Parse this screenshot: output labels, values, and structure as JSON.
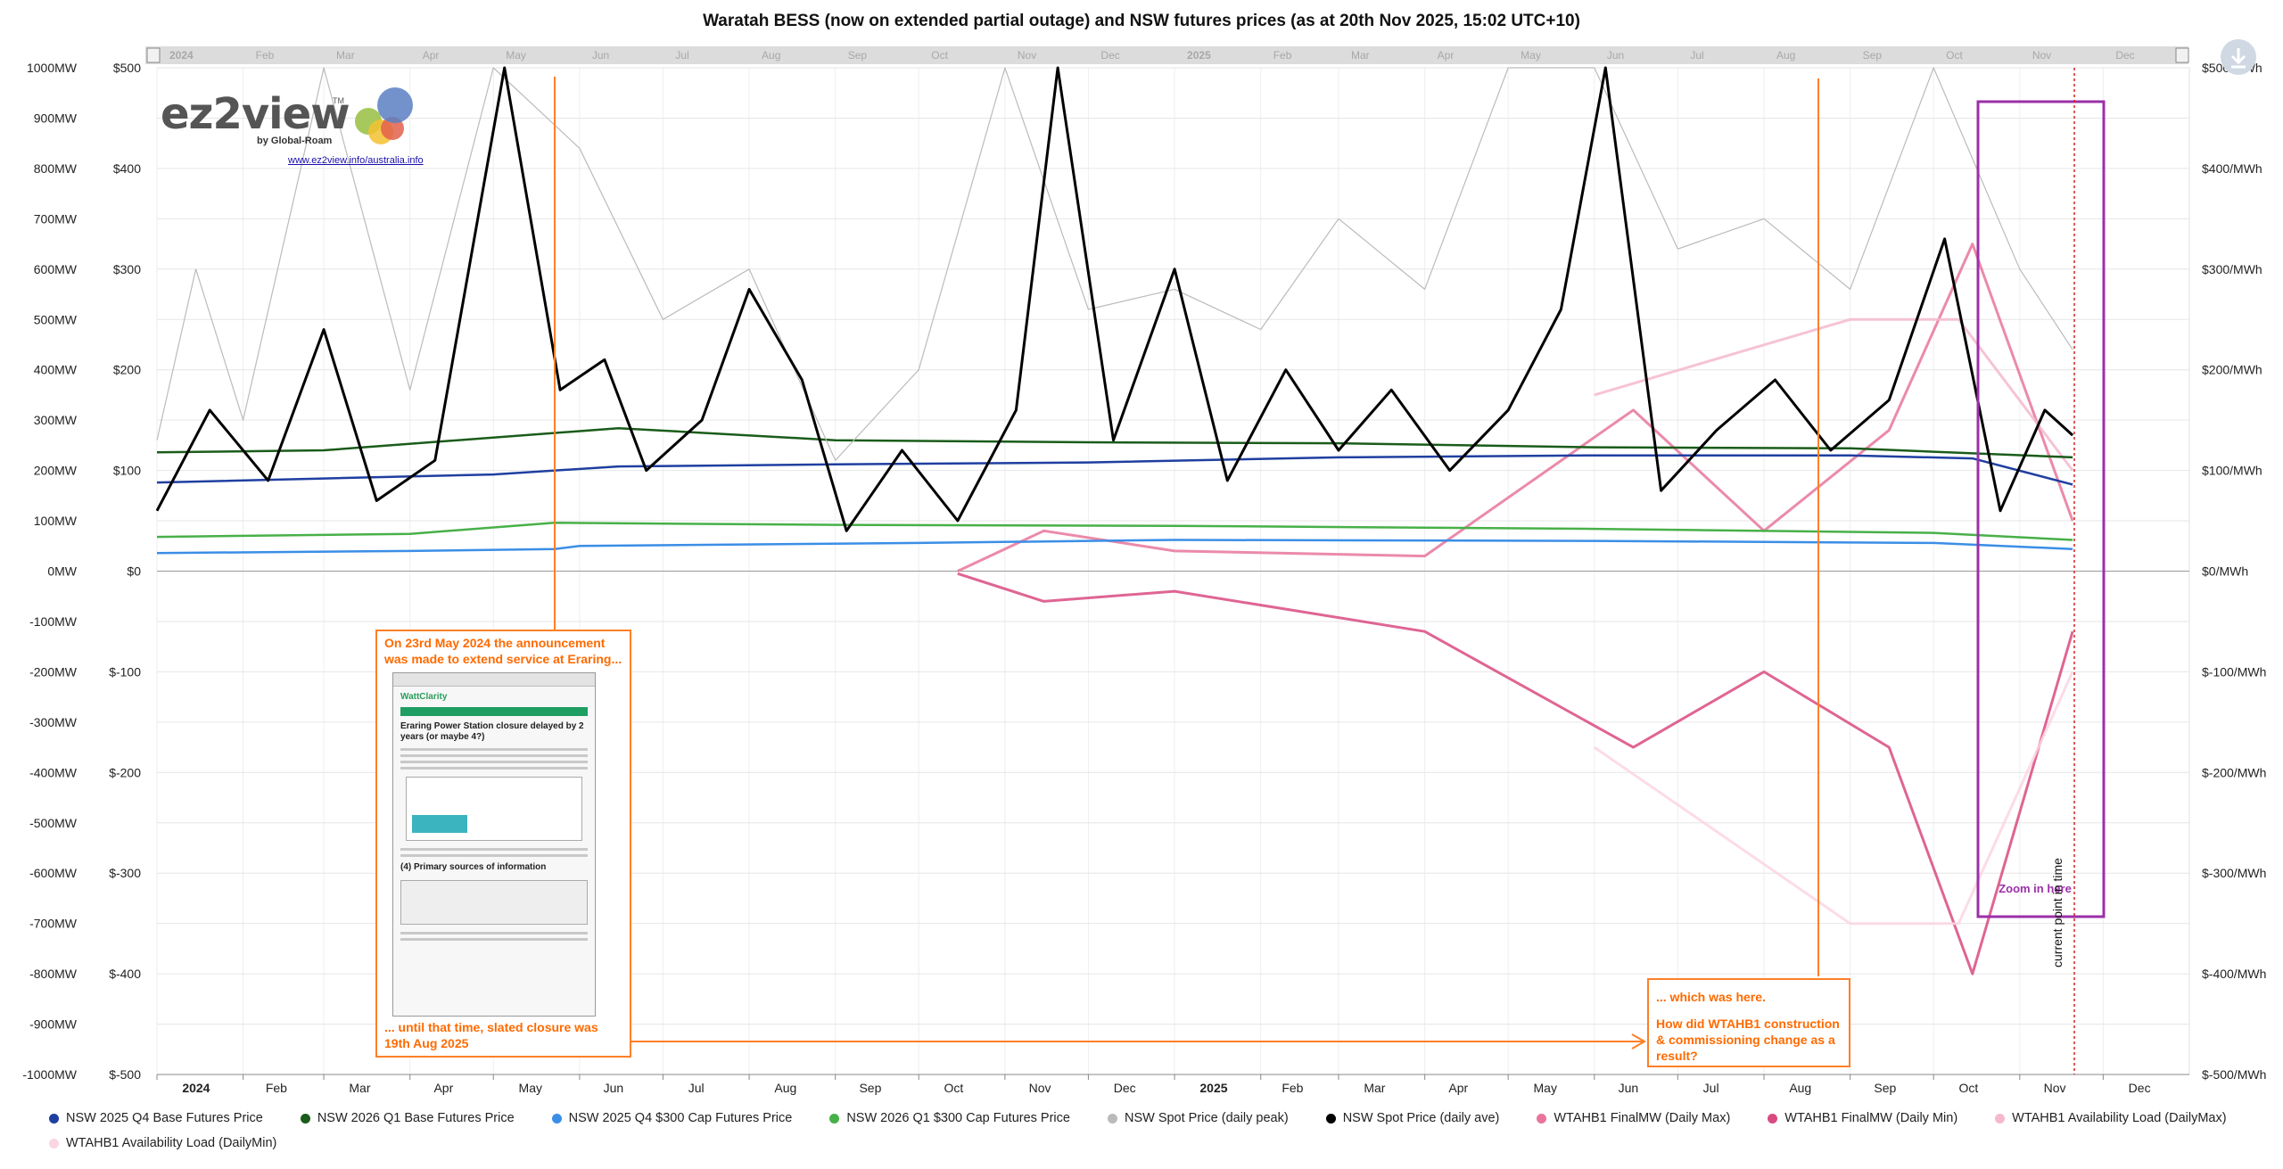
{
  "chart_data": {
    "type": "line",
    "title": "Waratah BESS (now on extended partial outage) and NSW futures prices (as at 20th Nov 2025, 15:02 UTC+10)",
    "x_range": [
      "2024-01-01",
      "2026-01-01"
    ],
    "x_tick_labels": [
      "2024",
      "Feb",
      "Mar",
      "Apr",
      "May",
      "Jun",
      "Jul",
      "Aug",
      "Sep",
      "Oct",
      "Nov",
      "Dec",
      "2025",
      "Feb",
      "Mar",
      "Apr",
      "May",
      "Jun",
      "Jul",
      "Aug",
      "Sep",
      "Oct",
      "Nov",
      "Dec"
    ],
    "left_axis_mw_labels": [
      "1000MW",
      "900MW",
      "800MW",
      "700MW",
      "600MW",
      "500MW",
      "400MW",
      "300MW",
      "200MW",
      "100MW",
      "0MW",
      "-100MW",
      "-200MW",
      "-300MW",
      "-400MW",
      "-500MW",
      "-600MW",
      "-700MW",
      "-800MW",
      "-900MW",
      "-1000MW"
    ],
    "left_axis_price_labels": [
      "$500",
      "$400",
      "$300",
      "$200",
      "$100",
      "$0",
      "$-100",
      "$-200",
      "$-300",
      "$-400",
      "$-500"
    ],
    "right_axis_price_labels": [
      "$500/MWh",
      "$400/MWh",
      "$300/MWh",
      "$200/MWh",
      "$100/MWh",
      "$0/MWh",
      "$-100/MWh",
      "$-200/MWh",
      "$-300/MWh",
      "$-400/MWh",
      "$-500/MWh"
    ],
    "mw_range": [
      -1000,
      1000
    ],
    "price_range": [
      -500,
      500
    ],
    "grid": true,
    "legend_position": "bottom",
    "series": [
      {
        "name": "NSW 2025 Q4 Base Futures Price",
        "color": "#1f3fa0",
        "axis": "price",
        "points": [
          [
            "2024-01-01",
            88
          ],
          [
            "2024-03-01",
            92
          ],
          [
            "2024-05-01",
            96
          ],
          [
            "2024-06-15",
            104
          ],
          [
            "2024-09-01",
            106
          ],
          [
            "2024-12-01",
            108
          ],
          [
            "2025-03-01",
            113
          ],
          [
            "2025-06-01",
            115
          ],
          [
            "2025-09-01",
            115
          ],
          [
            "2025-10-15",
            112
          ],
          [
            "2025-11-20",
            86
          ]
        ]
      },
      {
        "name": "NSW 2026 Q1 Base Futures Price",
        "color": "#1a5c1a",
        "axis": "price",
        "points": [
          [
            "2024-01-01",
            118
          ],
          [
            "2024-03-01",
            120
          ],
          [
            "2024-06-15",
            142
          ],
          [
            "2024-09-01",
            130
          ],
          [
            "2024-12-01",
            128
          ],
          [
            "2025-03-01",
            127
          ],
          [
            "2025-06-01",
            123
          ],
          [
            "2025-09-01",
            122
          ],
          [
            "2025-11-20",
            113
          ]
        ]
      },
      {
        "name": "NSW 2025 Q4 $300 Cap Futures Price",
        "color": "#3b8ee6",
        "axis": "price",
        "points": [
          [
            "2024-01-01",
            18
          ],
          [
            "2024-04-01",
            20
          ],
          [
            "2024-05-23",
            22
          ],
          [
            "2024-06-01",
            25
          ],
          [
            "2024-10-01",
            28
          ],
          [
            "2025-01-01",
            31
          ],
          [
            "2025-06-01",
            30
          ],
          [
            "2025-10-01",
            28
          ],
          [
            "2025-11-20",
            22
          ]
        ]
      },
      {
        "name": "NSW 2026 Q1 $300 Cap Futures Price",
        "color": "#48b048",
        "axis": "price",
        "points": [
          [
            "2024-01-01",
            34
          ],
          [
            "2024-04-01",
            37
          ],
          [
            "2024-05-23",
            48
          ],
          [
            "2024-09-01",
            46
          ],
          [
            "2025-01-01",
            45
          ],
          [
            "2025-06-01",
            42
          ],
          [
            "2025-10-01",
            38
          ],
          [
            "2025-11-20",
            31
          ]
        ]
      },
      {
        "name": "NSW Spot Price (daily peak)",
        "color": "#bbbbbb",
        "axis": "price",
        "points": [
          [
            "2024-01-01",
            130
          ],
          [
            "2024-01-15",
            300
          ],
          [
            "2024-02-01",
            150
          ],
          [
            "2024-03-01",
            500
          ],
          [
            "2024-04-01",
            180
          ],
          [
            "2024-05-01",
            500
          ],
          [
            "2024-06-01",
            420
          ],
          [
            "2024-07-01",
            250
          ],
          [
            "2024-08-01",
            300
          ],
          [
            "2024-09-01",
            110
          ],
          [
            "2024-10-01",
            200
          ],
          [
            "2024-11-01",
            500
          ],
          [
            "2024-12-01",
            260
          ],
          [
            "2025-01-01",
            280
          ],
          [
            "2025-02-01",
            240
          ],
          [
            "2025-03-01",
            350
          ],
          [
            "2025-04-01",
            280
          ],
          [
            "2025-05-01",
            500
          ],
          [
            "2025-06-01",
            500
          ],
          [
            "2025-07-01",
            320
          ],
          [
            "2025-08-01",
            350
          ],
          [
            "2025-09-01",
            280
          ],
          [
            "2025-10-01",
            500
          ],
          [
            "2025-11-01",
            300
          ],
          [
            "2025-11-20",
            220
          ]
        ]
      },
      {
        "name": "NSW Spot Price (daily ave)",
        "color": "#000000",
        "axis": "price",
        "points": [
          [
            "2024-01-01",
            60
          ],
          [
            "2024-01-20",
            160
          ],
          [
            "2024-02-10",
            90
          ],
          [
            "2024-03-01",
            240
          ],
          [
            "2024-03-20",
            70
          ],
          [
            "2024-04-10",
            110
          ],
          [
            "2024-05-05",
            500
          ],
          [
            "2024-05-25",
            180
          ],
          [
            "2024-06-10",
            210
          ],
          [
            "2024-06-25",
            100
          ],
          [
            "2024-07-15",
            150
          ],
          [
            "2024-08-01",
            280
          ],
          [
            "2024-08-20",
            190
          ],
          [
            "2024-09-05",
            40
          ],
          [
            "2024-09-25",
            120
          ],
          [
            "2024-10-15",
            50
          ],
          [
            "2024-11-05",
            160
          ],
          [
            "2024-11-20",
            500
          ],
          [
            "2024-12-10",
            130
          ],
          [
            "2025-01-01",
            300
          ],
          [
            "2025-01-20",
            90
          ],
          [
            "2025-02-10",
            200
          ],
          [
            "2025-03-01",
            120
          ],
          [
            "2025-03-20",
            180
          ],
          [
            "2025-04-10",
            100
          ],
          [
            "2025-05-01",
            160
          ],
          [
            "2025-05-20",
            260
          ],
          [
            "2025-06-05",
            500
          ],
          [
            "2025-06-25",
            80
          ],
          [
            "2025-07-15",
            140
          ],
          [
            "2025-08-05",
            190
          ],
          [
            "2025-08-25",
            120
          ],
          [
            "2025-09-15",
            170
          ],
          [
            "2025-10-05",
            330
          ],
          [
            "2025-10-25",
            60
          ],
          [
            "2025-11-10",
            160
          ],
          [
            "2025-11-20",
            135
          ]
        ]
      },
      {
        "name": "WTAHB1 FinalMW (Daily Max)",
        "color": "#e8759a",
        "axis": "mw",
        "points": [
          [
            "2024-10-15",
            0
          ],
          [
            "2024-11-15",
            80
          ],
          [
            "2025-01-01",
            40
          ],
          [
            "2025-04-01",
            30
          ],
          [
            "2025-06-15",
            320
          ],
          [
            "2025-08-01",
            80
          ],
          [
            "2025-09-15",
            280
          ],
          [
            "2025-10-15",
            650
          ],
          [
            "2025-11-20",
            100
          ]
        ]
      },
      {
        "name": "WTAHB1 FinalMW (Daily Min)",
        "color": "#d94a80",
        "axis": "mw",
        "points": [
          [
            "2024-10-15",
            -5
          ],
          [
            "2024-11-15",
            -60
          ],
          [
            "2025-01-01",
            -40
          ],
          [
            "2025-04-01",
            -120
          ],
          [
            "2025-06-15",
            -350
          ],
          [
            "2025-08-01",
            -200
          ],
          [
            "2025-09-15",
            -350
          ],
          [
            "2025-10-15",
            -800
          ],
          [
            "2025-11-20",
            -120
          ]
        ]
      },
      {
        "name": "WTAHB1 Availability Load (DailyMax)",
        "color": "#f5b8cf",
        "axis": "mw",
        "points": [
          [
            "2025-06-01",
            350
          ],
          [
            "2025-09-01",
            500
          ],
          [
            "2025-10-10",
            500
          ],
          [
            "2025-11-20",
            200
          ]
        ]
      },
      {
        "name": "WTAHB1 Availability Load (DailyMin)",
        "color": "#fbd5e3",
        "axis": "mw",
        "points": [
          [
            "2025-06-01",
            -350
          ],
          [
            "2025-09-01",
            -700
          ],
          [
            "2025-10-10",
            -700
          ],
          [
            "2025-11-20",
            -200
          ]
        ]
      }
    ],
    "annotations": {
      "zoom_box_label": "Zoom in here",
      "current_time_label": "current point in time",
      "current_time": "2025-11-20"
    }
  },
  "notes": {
    "announcement_top": "On 23rd May 2024 the announcement was made to extend service at Eraring...",
    "announcement_bottom": "... until that time, slated closure was 19th Aug 2025",
    "result_line1": "... which was here.",
    "result_line2": "How did WTAHB1 construction & commissioning change as a result?"
  },
  "embedded_article": {
    "brand": "WattClarity",
    "title": "Eraring Power Station closure delayed by 2 years (or maybe 4?)",
    "section": "(4) Primary sources of information"
  },
  "logo": {
    "wordmark": "ez2view",
    "tm": "TM",
    "byline": "by Global-Roam",
    "url": "www.ez2view.info/australia.info"
  },
  "colors": {
    "note_orange": "#ff7f27",
    "zoom_purple": "#9b30a8",
    "current_red": "#d62020",
    "navigator_grey": "#d8d8d8"
  }
}
